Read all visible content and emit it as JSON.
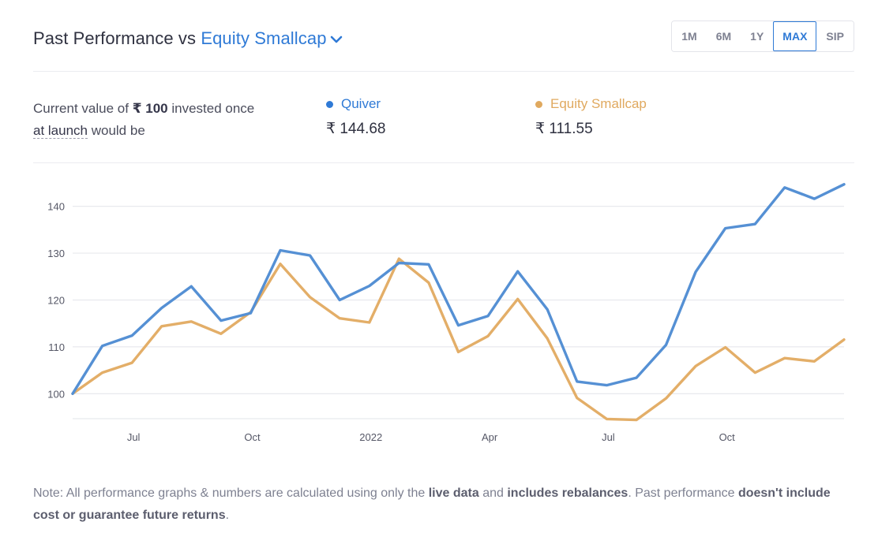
{
  "header": {
    "title_prefix": "Past Performance vs ",
    "benchmark_name": "Equity Smallcap",
    "ranges": [
      "1M",
      "6M",
      "1Y",
      "MAX",
      "SIP"
    ],
    "active_range": "MAX"
  },
  "summary": {
    "text_part1": "Current value of ",
    "amount": "₹ 100",
    "text_part2": " invested once ",
    "at_launch": "at launch",
    "text_part3": " would be"
  },
  "legend": [
    {
      "name": "Quiver",
      "value": "₹ 144.68",
      "color": "#2f7ad6"
    },
    {
      "name": "Equity Smallcap",
      "value": "₹ 111.55",
      "color": "#e0a95f"
    }
  ],
  "colors": {
    "quiver_line": "#5590d4",
    "smallcap_line": "#e3ae68",
    "grid": "#e8e9ee",
    "axis_text": "#555766"
  },
  "chart_data": {
    "type": "line",
    "title": "",
    "xlabel": "",
    "ylabel": "",
    "ylim": [
      94,
      147
    ],
    "y_ticks": [
      100,
      110,
      120,
      130,
      140
    ],
    "x_range": [
      0,
      25
    ],
    "x_ticks": [
      {
        "label": "Jul",
        "x": 2
      },
      {
        "label": "Oct",
        "x": 6
      },
      {
        "label": "2022",
        "x": 10
      },
      {
        "label": "Apr",
        "x": 14
      },
      {
        "label": "Jul",
        "x": 18
      },
      {
        "label": "Oct",
        "x": 22
      }
    ],
    "series": [
      {
        "name": "Quiver",
        "values": [
          100,
          110.2,
          112.4,
          118.3,
          122.9,
          115.6,
          117.2,
          130.6,
          129.5,
          120.0,
          123.0,
          127.9,
          127.6,
          114.6,
          116.6,
          126.1,
          118.0,
          102.6,
          101.8,
          103.4,
          110.4,
          126.0,
          135.3,
          136.2,
          144.0,
          141.6,
          144.68
        ]
      },
      {
        "name": "Equity Smallcap",
        "values": [
          100,
          104.5,
          106.6,
          114.4,
          115.4,
          112.8,
          117.4,
          127.7,
          120.6,
          116.1,
          115.2,
          128.8,
          123.7,
          108.9,
          112.3,
          120.2,
          111.8,
          99.1,
          94.6,
          94.4,
          99.0,
          105.9,
          109.9,
          104.5,
          107.6,
          106.9,
          111.55
        ]
      }
    ]
  },
  "note": {
    "part1": "Note: All performance graphs & numbers are calculated using only the ",
    "live_data": "live data",
    "part2": " and ",
    "includes": "includes rebalances",
    "part3": ". Past performance ",
    "doesnt": "doesn't include cost or guarantee future returns",
    "part4": "."
  }
}
